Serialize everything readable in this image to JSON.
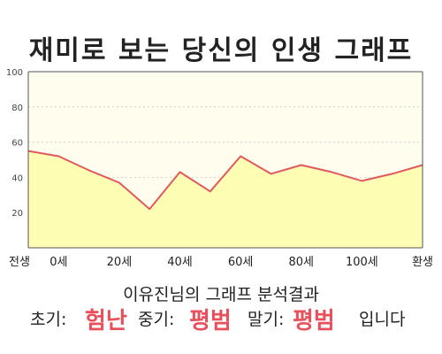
{
  "title": "재미로 보는 당신의 인생 그래프",
  "summary": {
    "heading": "이유진님의 그래프 분석결과",
    "early_label": "초기:",
    "early_value": "험난",
    "mid_label": "중기:",
    "mid_value": "평범",
    "late_label": "말기:",
    "late_value": "평범",
    "ending": "입니다"
  },
  "colors": {
    "line": "#e0595f",
    "fill": "#fdfdb4",
    "plot_bg": "#fffdee",
    "highlight": "#e8505b"
  },
  "chart_data": {
    "type": "area",
    "title": "재미로 보는 당신의 인생 그래프",
    "xlabel": "",
    "ylabel": "",
    "ylim": [
      0,
      100
    ],
    "yticks": [
      20,
      40,
      60,
      80,
      100
    ],
    "xtick_labels": [
      "전생",
      "0세",
      "20세",
      "40세",
      "60세",
      "80세",
      "100세",
      "환생"
    ],
    "grid": true,
    "legend": "none",
    "series": [
      {
        "x": [
          "전생",
          "0세",
          "10세",
          "20세",
          "30세",
          "40세",
          "50세",
          "60세",
          "70세",
          "80세",
          "90세",
          "100세",
          "110세",
          "환생"
        ],
        "values": [
          55,
          52,
          44,
          37,
          22,
          43,
          32,
          52,
          42,
          47,
          43,
          38,
          42,
          47
        ]
      }
    ]
  }
}
